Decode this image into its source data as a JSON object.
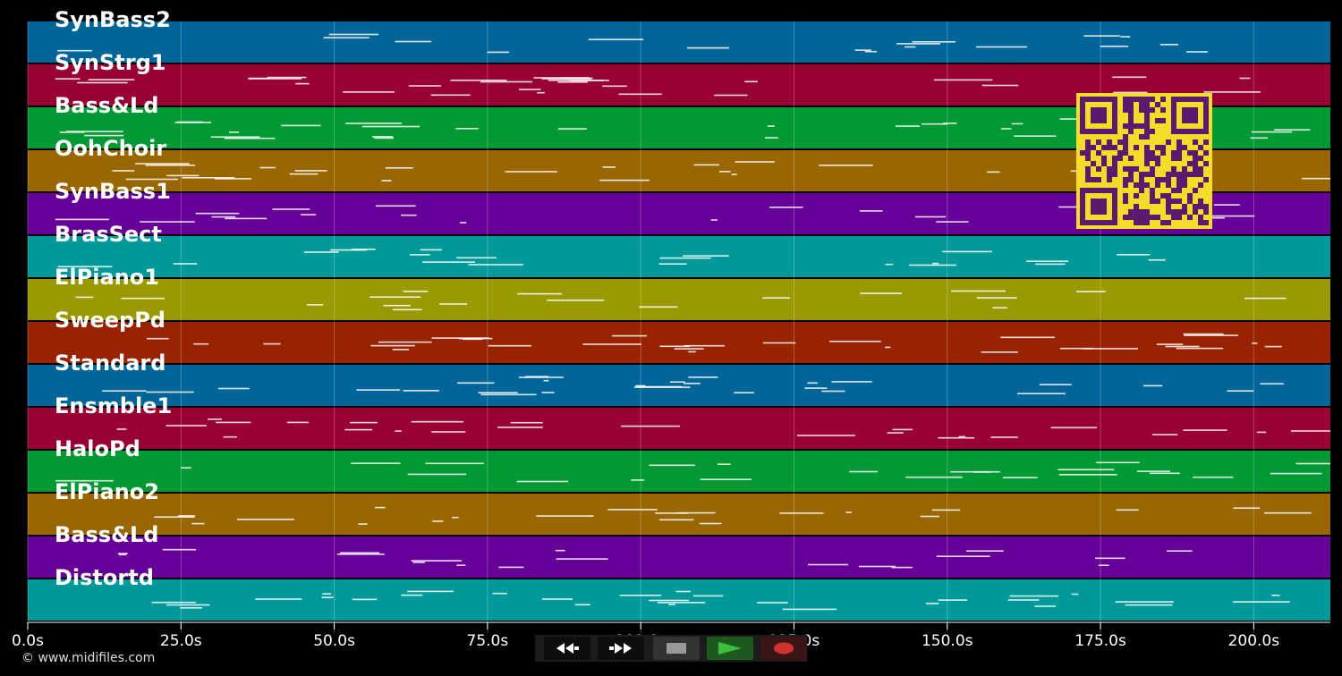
{
  "window": {
    "background": "#000000"
  },
  "tracks": [
    {
      "name": "SynBass2",
      "color": "#006699"
    },
    {
      "name": "SynStrg1",
      "color": "#990033"
    },
    {
      "name": "Bass&Ld",
      "color": "#009933"
    },
    {
      "name": "OohChoir",
      "color": "#996600"
    },
    {
      "name": "SynBass1",
      "color": "#660099"
    },
    {
      "name": "BrasSect",
      "color": "#009999"
    },
    {
      "name": "ElPiano1",
      "color": "#999900"
    },
    {
      "name": "SweepPd",
      "color": "#992200"
    },
    {
      "name": "Standard",
      "color": "#006699"
    },
    {
      "name": "Ensmble1",
      "color": "#990033"
    },
    {
      "name": "HaloPd",
      "color": "#009933"
    },
    {
      "name": "ElPiano2",
      "color": "#996600"
    },
    {
      "name": "Bass&Ld",
      "color": "#660099"
    },
    {
      "name": "Distortd",
      "color": "#009999"
    }
  ],
  "timeline": {
    "seconds_range": [
      0,
      212.5
    ],
    "ticks": [
      {
        "seconds": 0,
        "label": "0.0s"
      },
      {
        "seconds": 25,
        "label": "25.0s"
      },
      {
        "seconds": 50,
        "label": "50.0s"
      },
      {
        "seconds": 75,
        "label": "75.0s"
      },
      {
        "seconds": 100,
        "label": "100.0s"
      },
      {
        "seconds": 125,
        "label": "125.0s"
      },
      {
        "seconds": 150,
        "label": "150.0s"
      },
      {
        "seconds": 175,
        "label": "175.0s"
      },
      {
        "seconds": 200,
        "label": "200.0s"
      }
    ]
  },
  "transport": {
    "buttons": [
      {
        "name": "rewind-button",
        "icon": "rewind-icon"
      },
      {
        "name": "fast-forward-button",
        "icon": "fast-forward-icon"
      },
      {
        "name": "stop-button",
        "icon": "stop-icon"
      },
      {
        "name": "play-button",
        "icon": "play-icon",
        "accent": "#3bbf3b"
      },
      {
        "name": "record-button",
        "icon": "record-icon",
        "accent": "#d33030"
      }
    ]
  },
  "qr": {
    "icon": "qr-code-icon",
    "foreground": "#5a1a6e",
    "background": "#f5dc2a"
  },
  "footer": {
    "copyright": "© www.midifiles.com"
  }
}
